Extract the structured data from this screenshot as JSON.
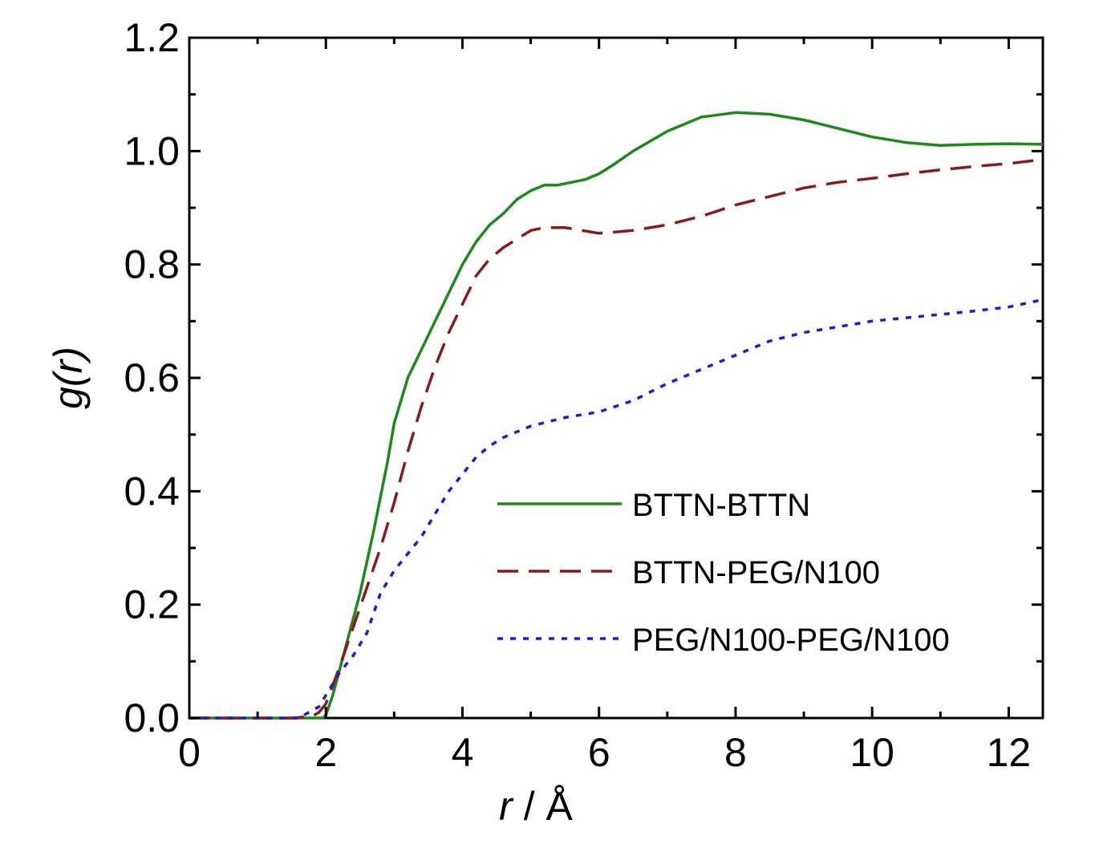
{
  "chart_data": {
    "type": "line",
    "xlabel_italic": "r",
    "xlabel_rest": " / Å",
    "ylabel_italic": "r",
    "ylabel_prefix": "g(",
    "ylabel_suffix": ")",
    "xlim": [
      0,
      12.5
    ],
    "ylim": [
      0,
      1.2
    ],
    "xticks": [
      0,
      2,
      4,
      6,
      8,
      10,
      12
    ],
    "xtick_labels": [
      "0",
      "2",
      "4",
      "6",
      "8",
      "10",
      "12"
    ],
    "yticks": [
      0,
      0.2,
      0.4,
      0.6,
      0.8,
      1.0,
      1.2
    ],
    "ytick_labels": [
      "0.0",
      "0.2",
      "0.4",
      "0.6",
      "0.8",
      "1.0",
      "1.2"
    ],
    "legend_position": "center-right",
    "grid": false,
    "series": [
      {
        "name": "BTTN-BTTN",
        "color": "#1a8a1a",
        "dash": "solid",
        "x": [
          0,
          1.5,
          1.8,
          1.95,
          2.0,
          2.1,
          2.3,
          2.5,
          2.7,
          2.9,
          3.0,
          3.2,
          3.4,
          3.6,
          3.8,
          4.0,
          4.2,
          4.4,
          4.6,
          4.8,
          5.0,
          5.2,
          5.4,
          5.6,
          5.8,
          6.0,
          6.2,
          6.5,
          7.0,
          7.5,
          8.0,
          8.5,
          9.0,
          9.5,
          10.0,
          10.5,
          11.0,
          11.5,
          12.0,
          12.5
        ],
        "y": [
          0,
          0,
          0.0,
          0.0,
          0.005,
          0.04,
          0.13,
          0.22,
          0.33,
          0.45,
          0.52,
          0.6,
          0.65,
          0.7,
          0.75,
          0.8,
          0.84,
          0.87,
          0.89,
          0.915,
          0.93,
          0.94,
          0.94,
          0.945,
          0.95,
          0.96,
          0.975,
          1.0,
          1.035,
          1.06,
          1.068,
          1.065,
          1.055,
          1.04,
          1.025,
          1.015,
          1.01,
          1.012,
          1.013,
          1.012
        ]
      },
      {
        "name": "BTTN-PEG/N100",
        "color": "#8b1a1a",
        "dash": "dashed",
        "x": [
          0,
          1.5,
          1.8,
          1.9,
          2.0,
          2.2,
          2.4,
          2.6,
          2.8,
          3.0,
          3.2,
          3.4,
          3.6,
          3.8,
          4.0,
          4.2,
          4.4,
          4.6,
          4.8,
          5.0,
          5.2,
          5.5,
          6.0,
          6.5,
          7.0,
          7.5,
          8.0,
          8.5,
          9.0,
          9.5,
          10.0,
          10.5,
          11.0,
          11.5,
          12.0,
          12.5
        ],
        "y": [
          0,
          0,
          0.003,
          0.01,
          0.025,
          0.09,
          0.16,
          0.23,
          0.3,
          0.38,
          0.47,
          0.55,
          0.62,
          0.68,
          0.73,
          0.78,
          0.81,
          0.83,
          0.845,
          0.86,
          0.865,
          0.865,
          0.855,
          0.86,
          0.87,
          0.885,
          0.905,
          0.92,
          0.935,
          0.945,
          0.952,
          0.96,
          0.967,
          0.973,
          0.978,
          0.985
        ]
      },
      {
        "name": "PEG/N100-PEG/N100",
        "color": "#1a1ae6",
        "dash": "dotted",
        "x": [
          0,
          1.6,
          1.9,
          2.0,
          2.2,
          2.4,
          2.6,
          2.8,
          3.0,
          3.2,
          3.4,
          3.6,
          3.8,
          4.0,
          4.2,
          4.4,
          4.6,
          4.8,
          5.0,
          5.5,
          6.0,
          6.5,
          7.0,
          7.5,
          8.0,
          8.5,
          9.0,
          9.5,
          10.0,
          10.5,
          11.0,
          11.5,
          12.0,
          12.5
        ],
        "y": [
          0,
          0,
          0.02,
          0.04,
          0.08,
          0.11,
          0.15,
          0.22,
          0.26,
          0.29,
          0.32,
          0.36,
          0.4,
          0.43,
          0.46,
          0.48,
          0.495,
          0.505,
          0.515,
          0.53,
          0.54,
          0.56,
          0.59,
          0.615,
          0.64,
          0.665,
          0.68,
          0.69,
          0.7,
          0.706,
          0.712,
          0.718,
          0.725,
          0.738
        ]
      }
    ]
  }
}
